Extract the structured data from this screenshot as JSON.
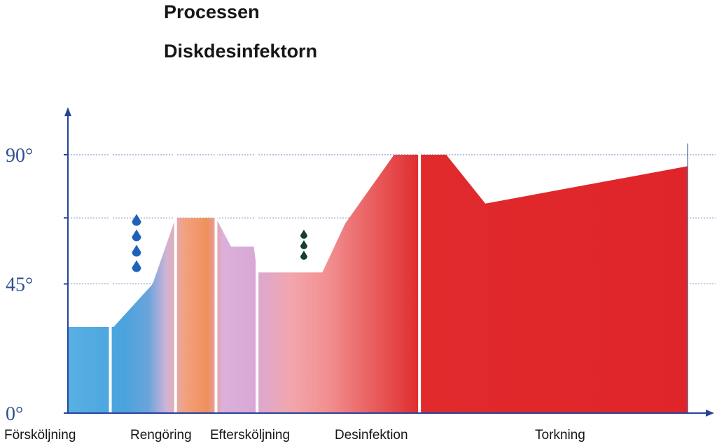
{
  "header": {
    "title": "Processen",
    "subtitle": "Diskdesinfektorn"
  },
  "chart_data": {
    "type": "area",
    "title": "Processen",
    "subtitle": "Diskdesinfektorn",
    "xlabel": "",
    "ylabel": "",
    "y_ticks": [
      "0°",
      "45°",
      "90°"
    ],
    "y_tick_values": [
      0,
      45,
      90
    ],
    "ylim": [
      0,
      112
    ],
    "grid": true,
    "phases": [
      "Försköljning",
      "Rengöring",
      "Eftersköljning",
      "Desinfektion",
      "Torkning"
    ],
    "x": [
      0,
      6.5,
      7,
      13,
      16.5,
      22,
      22.7,
      25,
      28.5,
      29,
      33.5,
      39,
      42.5,
      50,
      53.5,
      53.9,
      58,
      64,
      95
    ],
    "y": [
      30,
      30,
      30,
      45,
      68,
      68,
      68,
      58,
      58,
      49,
      49,
      49,
      66,
      90,
      90,
      90,
      90,
      73,
      86
    ],
    "drops": [
      {
        "phase": "Rengöring",
        "count": 4,
        "color": "#1f63b8"
      },
      {
        "phase": "Eftersköljning",
        "count": 3,
        "color": "#14402d"
      }
    ],
    "colors": {
      "cold": "#4aa3dd",
      "warm": "#f0905c",
      "hot": "#e0252a",
      "axis": "#27439b",
      "grid": "#6a86c4"
    }
  }
}
